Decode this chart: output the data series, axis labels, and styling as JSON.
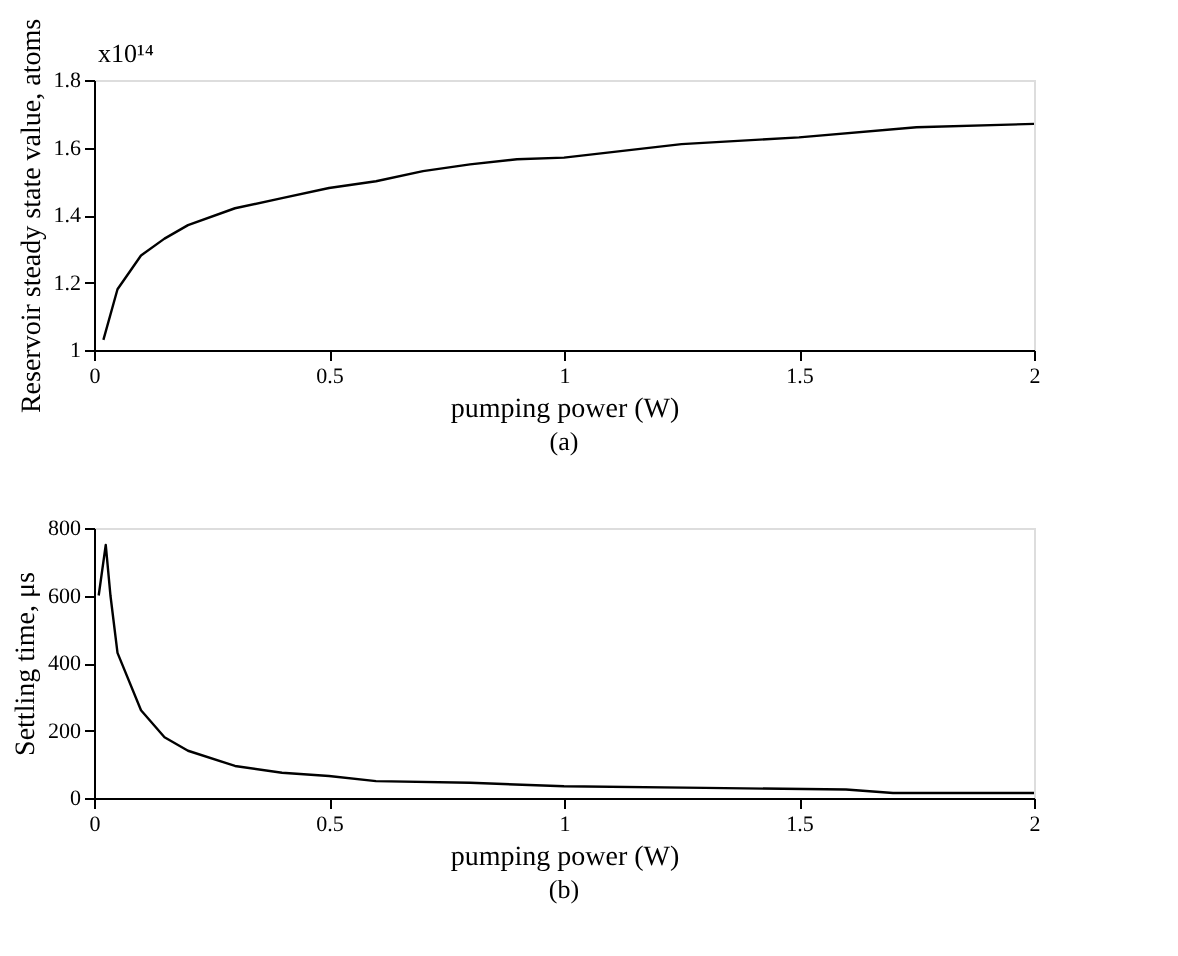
{
  "chart_data": [
    {
      "type": "line",
      "ylabel": "Reservoir steady state value, atoms",
      "xlabel": "pumping power (W)",
      "annotations": [
        "x10¹⁴",
        "(a)"
      ],
      "x": [
        0.02,
        0.05,
        0.1,
        0.15,
        0.2,
        0.3,
        0.4,
        0.5,
        0.6,
        0.7,
        0.8,
        0.9,
        1.0,
        1.25,
        1.5,
        1.75,
        2.0
      ],
      "series": [
        {
          "color": "#000000",
          "values": [
            1.03,
            1.18,
            1.28,
            1.33,
            1.37,
            1.42,
            1.45,
            1.48,
            1.5,
            1.53,
            1.55,
            1.565,
            1.57,
            1.61,
            1.63,
            1.66,
            1.67
          ]
        }
      ],
      "xlim": [
        0,
        2
      ],
      "xticks": [
        0,
        0.5,
        1,
        1.5,
        2
      ],
      "ylim": [
        1,
        1.8
      ],
      "yticks": [
        1,
        1.2,
        1.4,
        1.6,
        1.8
      ],
      "grid": false,
      "line_style": "solid",
      "marker": "none"
    },
    {
      "type": "line",
      "ylabel": "Settling time, μs",
      "xlabel": "pumping power (W)",
      "annotations": [
        "(b)"
      ],
      "x": [
        0.01,
        0.025,
        0.035,
        0.05,
        0.1,
        0.15,
        0.2,
        0.3,
        0.4,
        0.5,
        0.6,
        0.8,
        1.0,
        1.3,
        1.6,
        1.7,
        2.0
      ],
      "series": [
        {
          "color": "#000000",
          "values": [
            600,
            750,
            600,
            430,
            260,
            180,
            140,
            95,
            75,
            65,
            50,
            45,
            35,
            30,
            25,
            15,
            15
          ]
        }
      ],
      "xlim": [
        0,
        2
      ],
      "xticks": [
        0,
        0.5,
        1,
        1.5,
        2
      ],
      "ylim": [
        0,
        800
      ],
      "yticks": [
        0,
        200,
        400,
        600,
        800
      ],
      "grid": false,
      "line_style": "solid",
      "marker": "none"
    }
  ]
}
